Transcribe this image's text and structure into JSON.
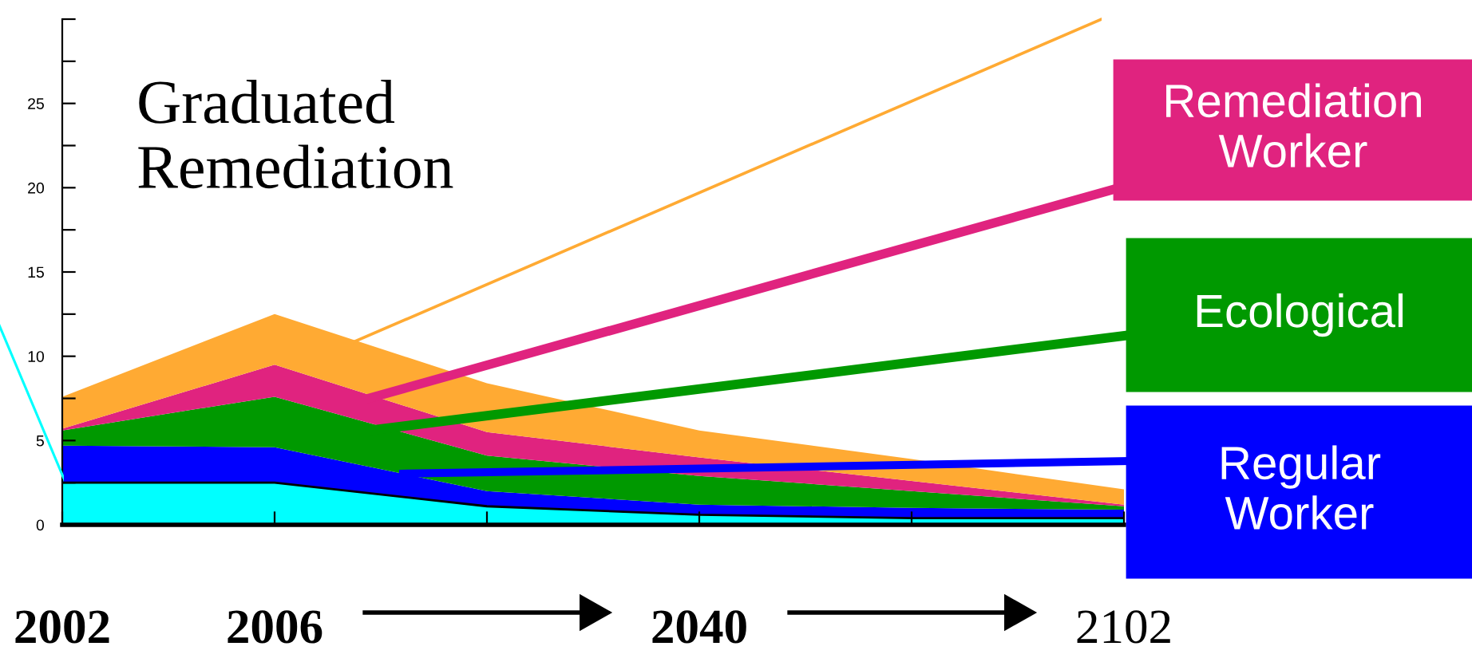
{
  "chart_data": {
    "type": "area",
    "stacked": true,
    "title": "Graduated Remediation",
    "categories": [
      "2002",
      "2006",
      null,
      "2040",
      null,
      "2102"
    ],
    "series": [
      {
        "color": "#00ffff",
        "values": [
          2.5,
          2.5,
          1.1,
          0.6,
          0.4,
          0.4
        ]
      },
      {
        "name": "Regular Worker",
        "color": "#0000ff",
        "values": [
          2.2,
          2.1,
          0.9,
          0.6,
          0.6,
          0.5
        ]
      },
      {
        "name": "Ecological",
        "color": "#009900",
        "values": [
          0.9,
          3.0,
          2.1,
          1.7,
          1.0,
          0.2
        ]
      },
      {
        "name": "Remediation Worker",
        "color": "#e0237f",
        "values": [
          0.1,
          1.9,
          1.4,
          1.1,
          0.6,
          0.1
        ]
      },
      {
        "color": "#ffaa33",
        "values": [
          1.9,
          3.0,
          2.9,
          1.6,
          1.3,
          0.9
        ]
      }
    ],
    "ylim": [
      0,
      30
    ],
    "yticks": [
      0,
      {
        "value": 2.5,
        "label": null
      },
      5,
      {
        "value": 7.5,
        "label": null
      },
      10,
      {
        "value": 12.5,
        "label": null
      },
      15,
      {
        "value": 17.5,
        "label": null
      },
      20,
      {
        "value": 22.5,
        "label": null
      },
      25,
      {
        "value": 27.5,
        "label": null
      },
      {
        "value": 30,
        "label": null
      }
    ],
    "grid": false,
    "legend": false
  }
}
